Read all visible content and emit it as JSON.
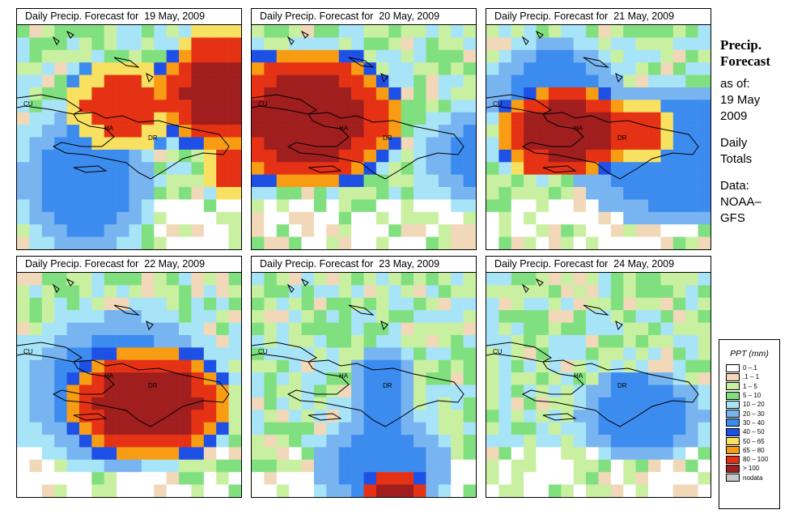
{
  "panels": [
    {
      "title": "Daily Precip. Forecast for  19 May, 2009",
      "rain": [
        {
          "cx": 25,
          "cy": 10,
          "rx": 8,
          "ry": 6,
          "v": 3
        },
        {
          "cx": 5,
          "cy": 12,
          "rx": 6,
          "ry": 7,
          "v": 2
        },
        {
          "cx": 17,
          "cy": 5,
          "rx": 7,
          "ry": 5,
          "v": 6
        },
        {
          "cx": 16,
          "cy": 2,
          "rx": 4,
          "ry": 3,
          "v": 4
        },
        {
          "cx": 8,
          "cy": 6,
          "rx": 5,
          "ry": 4,
          "v": 4
        },
        {
          "cx": 18,
          "cy": 11,
          "rx": 4,
          "ry": 3,
          "v": 4
        }
      ]
    },
    {
      "title": "Daily Precip. Forecast for  20 May, 2009",
      "rain": [
        {
          "cx": 20,
          "cy": 22,
          "rx": 9,
          "ry": 3,
          "v": 3
        },
        {
          "cx": 21,
          "cy": 10,
          "rx": 9,
          "ry": 5,
          "v": 2
        },
        {
          "cx": 4,
          "cy": 7,
          "rx": 8,
          "ry": 6,
          "v": 6
        }
      ]
    },
    {
      "title": "Daily Precip. Forecast for  21 May, 2009",
      "rain": [
        {
          "cx": 15,
          "cy": 10,
          "rx": 9,
          "ry": 6,
          "v": 3
        },
        {
          "cx": 5,
          "cy": 5,
          "rx": 6,
          "ry": 5,
          "v": 2
        },
        {
          "cx": 6,
          "cy": 8,
          "rx": 6,
          "ry": 4,
          "v": 6
        },
        {
          "cx": 4,
          "cy": 10,
          "rx": 3,
          "ry": 2,
          "v": 4
        },
        {
          "cx": 11,
          "cy": 8,
          "rx": 4,
          "ry": 3,
          "v": 4
        }
      ]
    },
    {
      "title": "Daily Precip. Forecast for  22 May, 2009",
      "rain": [
        {
          "cx": 8,
          "cy": 9,
          "rx": 9,
          "ry": 7,
          "v": 2
        },
        {
          "cx": 10,
          "cy": 10,
          "rx": 7,
          "ry": 5,
          "v": 6
        },
        {
          "cx": 8,
          "cy": 11,
          "rx": 3,
          "ry": 3,
          "v": 4
        }
      ]
    },
    {
      "title": "Daily Precip. Forecast for  23 May, 2009",
      "rain": [
        {
          "cx": 10,
          "cy": 15,
          "rx": 6,
          "ry": 5,
          "v": 2
        },
        {
          "cx": 11,
          "cy": 18,
          "rx": 3,
          "ry": 3,
          "v": 6
        },
        {
          "cx": 10,
          "cy": 9,
          "rx": 3,
          "ry": 4,
          "v": 2
        }
      ]
    },
    {
      "title": "Daily Precip. Forecast for  24 May, 2009",
      "rain": [
        {
          "cx": 12,
          "cy": 11,
          "rx": 6,
          "ry": 4,
          "v": 2
        },
        {
          "cx": 11,
          "cy": 9,
          "rx": 3,
          "ry": 2,
          "v": 2
        }
      ]
    }
  ],
  "country_labels": {
    "cu": "CU",
    "ha": "HA",
    "dr": "DR"
  },
  "side": {
    "title1": "Precip.",
    "title2": "Forecast",
    "asof": "as of:",
    "date1": "19 May",
    "date2": "2009",
    "daily1": "Daily",
    "daily2": "Totals",
    "data1": "Data:",
    "data2": "NOAA–",
    "data3": "GFS"
  },
  "legend": {
    "title": "PPT (mm)",
    "items": [
      {
        "label": "0 –.1",
        "color": "#ffffff"
      },
      {
        "label": ".1 – 1",
        "color": "#f0d8b8"
      },
      {
        "label": "1 – 5",
        "color": "#c8f0a0"
      },
      {
        "label": "5 – 10",
        "color": "#80e080"
      },
      {
        "label": "10 – 20",
        "color": "#a8e4f8"
      },
      {
        "label": "20 – 30",
        "color": "#78b4f0"
      },
      {
        "label": "30 – 40",
        "color": "#3c8cf0"
      },
      {
        "label": "40 – 50",
        "color": "#1e50e6"
      },
      {
        "label": "50 – 65",
        "color": "#f8e060"
      },
      {
        "label": "65 – 80",
        "color": "#f89c14"
      },
      {
        "label": "80 – 100",
        "color": "#e63214"
      },
      {
        "label": "> 100",
        "color": "#a01e1e"
      },
      {
        "label": "nodata",
        "color": "#c8c8c8"
      }
    ]
  }
}
